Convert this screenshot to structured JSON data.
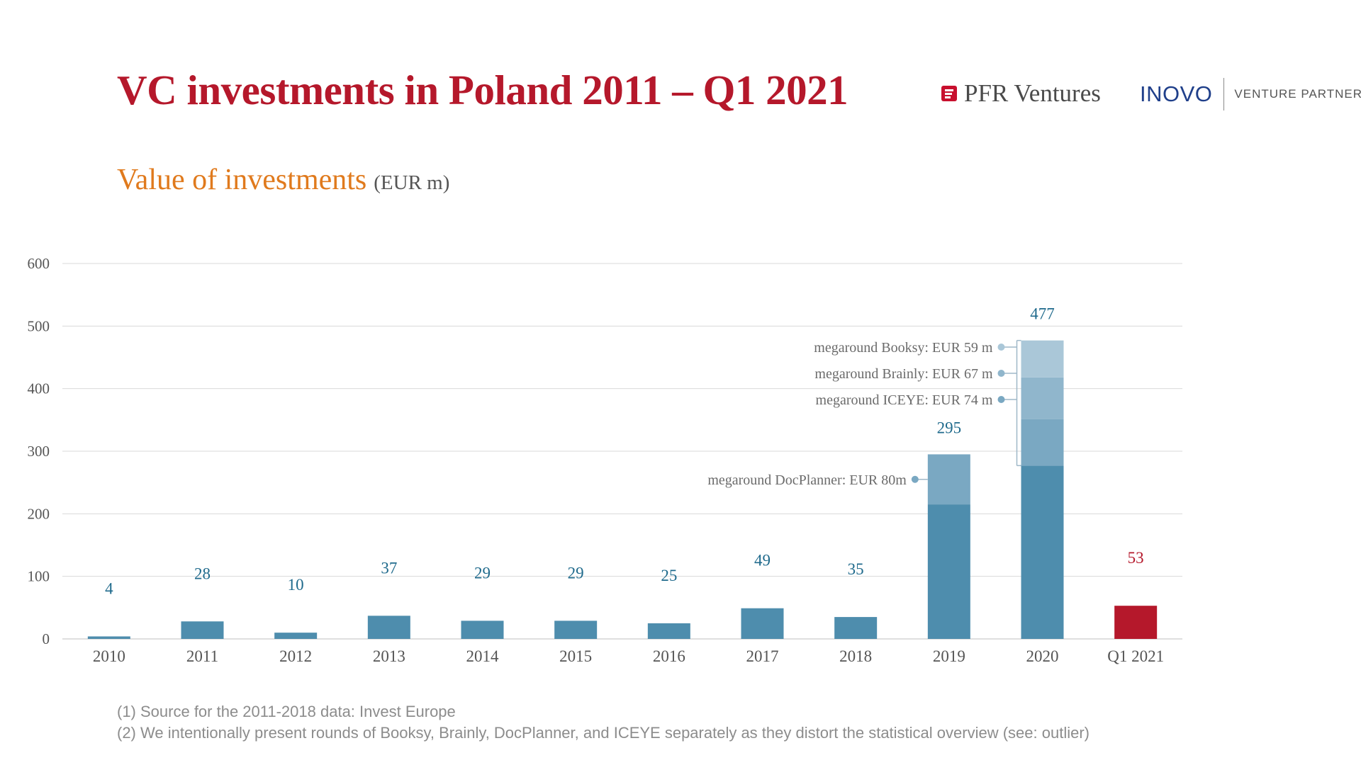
{
  "header": {
    "title": "VC investments in Poland 2011 – Q1 2021",
    "subtitle": "Value of investments",
    "subtitle_unit": "(EUR m)",
    "logo_pfr": "PFR Ventures",
    "logo_inovo": "INOVO",
    "logo_inovo_sub": "VENTURE PARTNERS"
  },
  "chart_data": {
    "type": "bar",
    "stacked": true,
    "categories": [
      "2010",
      "2011",
      "2012",
      "2013",
      "2014",
      "2015",
      "2016",
      "2017",
      "2018",
      "2019",
      "2020",
      "Q1 2021"
    ],
    "totals": [
      4,
      28,
      10,
      37,
      29,
      29,
      25,
      49,
      35,
      295,
      477,
      53
    ],
    "series": [
      {
        "values": [
          4,
          28,
          10,
          37,
          29,
          29,
          25,
          49,
          35,
          215,
          277,
          53
        ]
      },
      {
        "values": [
          0,
          0,
          0,
          0,
          0,
          0,
          0,
          0,
          0,
          80,
          74,
          0
        ]
      },
      {
        "values": [
          0,
          0,
          0,
          0,
          0,
          0,
          0,
          0,
          0,
          0,
          67,
          0
        ]
      },
      {
        "values": [
          0,
          0,
          0,
          0,
          0,
          0,
          0,
          0,
          0,
          0,
          59,
          0
        ]
      }
    ],
    "ylim": [
      0,
      600
    ],
    "yticks": [
      0,
      100,
      200,
      300,
      400,
      500,
      600
    ],
    "grid": true,
    "annotations": [
      {
        "text": "megaround DocPlanner: EUR 80m",
        "category": "2019"
      },
      {
        "text": "megaround ICEYE: EUR 74 m",
        "category": "2020"
      },
      {
        "text": "megaround Brainly: EUR 67 m",
        "category": "2020"
      },
      {
        "text": "megaround Booksy: EUR 59 m",
        "category": "2020"
      }
    ],
    "colors": {
      "base": "#4e8dad",
      "mega_1": "#7aa8c2",
      "mega_2": "#90b6cc",
      "mega_3": "#aac7d8",
      "highlight": "#b5182b",
      "label": "#1f6a8c",
      "tick": "#555555",
      "grid": "#d9d9d9"
    }
  },
  "footnotes": [
    "(1) Source for the 2011-2018 data: Invest Europe",
    "(2) We intentionally present rounds of Booksy, Brainly, DocPlanner, and ICEYE separately as they distort the statistical overview (see: outlier)"
  ]
}
